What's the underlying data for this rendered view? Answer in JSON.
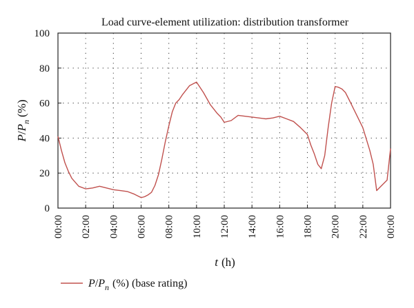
{
  "chart_data": {
    "type": "line",
    "title": "Load curve-element utilization: distribution transformer",
    "xlabel": {
      "var": "t",
      "unit": "(h)"
    },
    "ylabel": {
      "var": "P",
      "sep": "/",
      "var2": "P",
      "sub": "n",
      "unit": "(%)"
    },
    "ylim": [
      0,
      100
    ],
    "xlim": [
      0,
      24
    ],
    "y_ticks": [
      "0",
      "20",
      "40",
      "60",
      "80",
      "100"
    ],
    "x_ticks": [
      "00:00",
      "02:00",
      "04:00",
      "06:00",
      "08:00",
      "10:00",
      "12:00",
      "14:00",
      "16:00",
      "18:00",
      "20:00",
      "22:00",
      "00:00"
    ],
    "grid": true,
    "legend_placement": "bottom-left",
    "series": [
      {
        "name": "P/P_n (%) (base rating)",
        "legend": {
          "var": "P",
          "sep": "/",
          "var2": "P",
          "sub": "n",
          "rest": "(%) (base rating)"
        },
        "color": "#c0504d",
        "x": [
          0,
          0.25,
          0.5,
          0.75,
          1,
          1.5,
          2,
          2.5,
          3,
          3.5,
          4,
          4.5,
          5,
          5.5,
          6,
          6.25,
          6.5,
          6.75,
          7,
          7.25,
          7.5,
          7.75,
          8,
          8.25,
          8.5,
          8.75,
          9,
          9.5,
          10,
          10.5,
          11,
          11.5,
          11.75,
          12,
          12.5,
          13,
          13.5,
          14,
          14.5,
          15,
          15.5,
          16,
          16.5,
          17,
          17.5,
          18,
          18.25,
          18.5,
          18.75,
          19,
          19.25,
          19.5,
          19.75,
          20,
          20.25,
          20.5,
          20.75,
          21,
          21.5,
          22,
          22.5,
          22.75,
          23,
          23.25,
          23.5,
          23.75,
          24
        ],
        "y": [
          41,
          33,
          26,
          21,
          17,
          12.5,
          11,
          11.5,
          12.5,
          11.5,
          10.5,
          10,
          9.5,
          8,
          6,
          6.5,
          7.5,
          9,
          13,
          19,
          28,
          38,
          47,
          55,
          60,
          62,
          65,
          70,
          72,
          66,
          59,
          54,
          52,
          49,
          50,
          53,
          52.5,
          52,
          51.5,
          51,
          51.5,
          52.5,
          51,
          49.5,
          46,
          42,
          36,
          31,
          25,
          22.5,
          30,
          46,
          60,
          69.5,
          69,
          68,
          66,
          62,
          54,
          46,
          33,
          25,
          10,
          12,
          14,
          16,
          34
        ]
      }
    ]
  }
}
